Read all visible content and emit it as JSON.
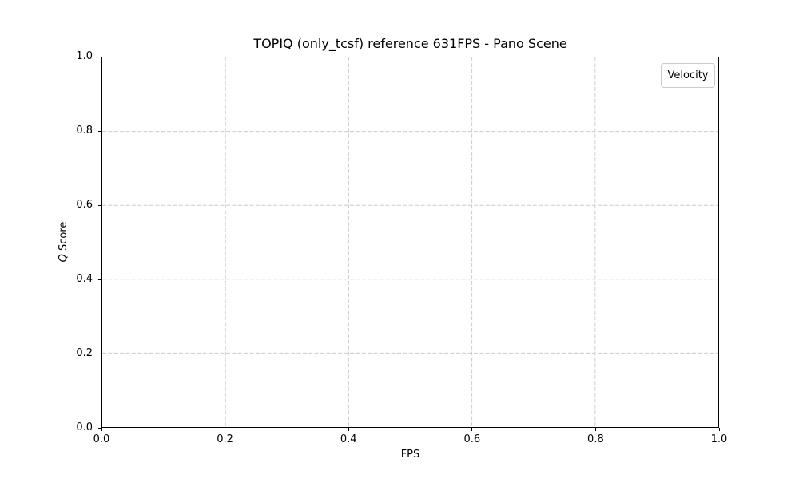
{
  "figure": {
    "background": "#ffffff",
    "spine_color": "#000000",
    "grid_color": "#cccccc",
    "text_color": "#000000",
    "legend_border_color": "#cccccc"
  },
  "chart_data": {
    "type": "scatter",
    "title": "TOPIQ (only_tcsf) reference 631FPS - Pano Scene",
    "xlabel": "FPS",
    "ylabel": "Q Score",
    "xlim": [
      0.0,
      1.0
    ],
    "ylim": [
      0.0,
      1.0
    ],
    "xticks": [
      0.0,
      0.2,
      0.4,
      0.6,
      0.8,
      1.0
    ],
    "yticks": [
      0.0,
      0.2,
      0.4,
      0.6,
      0.8,
      1.0
    ],
    "tick_decimals": 1,
    "grid": true,
    "grid_style": "dashed",
    "legend": {
      "title": "Velocity",
      "entries": [],
      "position": "upper right"
    },
    "series": []
  }
}
